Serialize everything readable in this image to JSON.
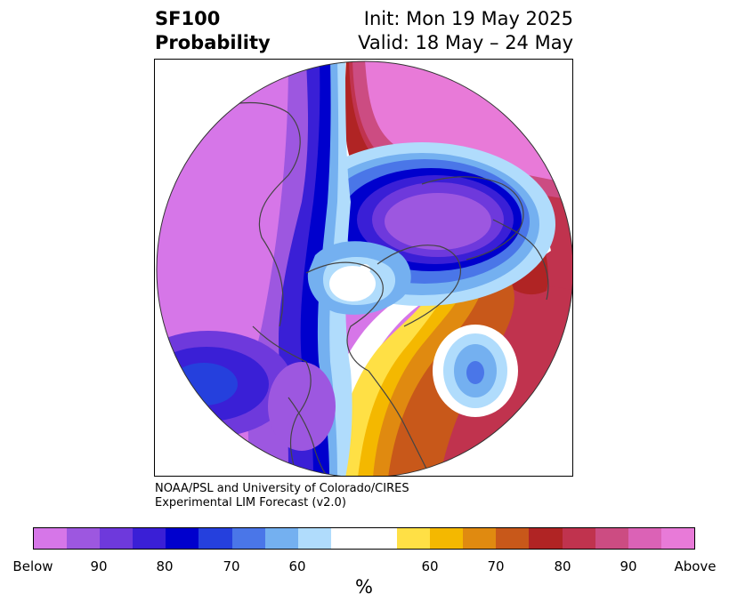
{
  "title": {
    "left_line1": "SF100",
    "left_line2": "Probability",
    "right_line1": "Init: Mon 19 May 2025",
    "right_line2": "Valid: 18 May – 24 May"
  },
  "credit": {
    "line1": "NOAA/PSL and University of Colorado/CIRES",
    "line2": "Experimental LIM Forecast (v2.0)"
  },
  "colorbar": {
    "colors": [
      "#d676e8",
      "#9d57e0",
      "#6e39dc",
      "#3a1fd6",
      "#0000cd",
      "#2540dd",
      "#4a76e8",
      "#74b0f0",
      "#b0dcfc",
      "#ffffff",
      "#ffffff",
      "#ffe045",
      "#f4b800",
      "#e08a10",
      "#c8581a",
      "#b02424",
      "#c0334e",
      "#cc4c82",
      "#db62b6",
      "#e87ad8"
    ],
    "tick_labels": [
      "Below",
      "90",
      "80",
      "70",
      "60",
      "60",
      "70",
      "80",
      "90",
      "Above"
    ],
    "units": "%"
  },
  "map": {
    "projection": "north-polar-stereographic",
    "field": "SF100 probability",
    "colors": {
      "below_far": "#d676e8",
      "below_purple": "#9d57e0",
      "below_violet": "#6e39dc",
      "below_indigo": "#3a1fd6",
      "below_blue": "#0000cd",
      "below_mid": "#2540dd",
      "below_light": "#4a76e8",
      "below_lighter": "#74b0f0",
      "below_pale": "#b0dcfc",
      "neutral": "#ffffff",
      "above_yellow": "#ffe045",
      "above_gold": "#f4b800",
      "above_orange": "#e08a10",
      "above_burnt": "#c8581a",
      "above_red": "#b02424",
      "above_crimson": "#c0334e",
      "above_pink": "#cc4c82",
      "above_magenta": "#e87ad8",
      "coastline": "#444444"
    }
  }
}
